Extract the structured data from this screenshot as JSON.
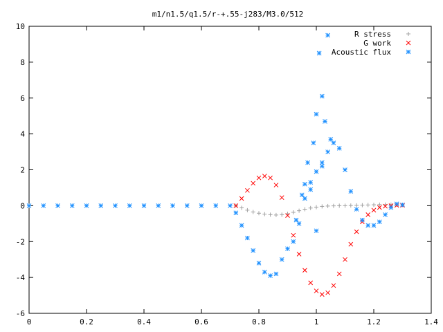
{
  "chart_data": {
    "type": "scatter",
    "title": "m1/n1.5/q1.5/r-+.55-j283/M3.0/512",
    "xlabel": "",
    "ylabel": "",
    "xlim": [
      0,
      1.4
    ],
    "ylim": [
      -6,
      10
    ],
    "x_ticks": [
      "0",
      "0.2",
      "0.4",
      "0.6",
      "0.8",
      "1",
      "1.2",
      "1.4"
    ],
    "y_ticks": [
      "-6",
      "-4",
      "-2",
      "0",
      "2",
      "4",
      "6",
      "8",
      "10"
    ],
    "legend_position": "top-right",
    "grid": false,
    "series": [
      {
        "name": "R stress",
        "marker": "plus",
        "color": "#a0a0a0",
        "x": [
          0.72,
          0.74,
          0.76,
          0.78,
          0.8,
          0.82,
          0.84,
          0.86,
          0.88,
          0.9,
          0.92,
          0.94,
          0.96,
          0.98,
          1.0,
          1.02,
          1.04,
          1.06,
          1.08,
          1.1,
          1.12,
          1.14,
          1.16,
          1.18,
          1.2,
          1.22,
          1.24,
          1.26,
          1.28,
          1.3
        ],
        "y": [
          0.0,
          -0.12,
          -0.25,
          -0.35,
          -0.42,
          -0.47,
          -0.5,
          -0.52,
          -0.5,
          -0.45,
          -0.37,
          -0.28,
          -0.2,
          -0.13,
          -0.08,
          -0.04,
          -0.02,
          -0.01,
          0.0,
          0.0,
          0.01,
          0.02,
          0.03,
          0.04,
          0.05,
          0.06,
          0.06,
          0.06,
          0.05,
          0.04
        ]
      },
      {
        "name": "G work",
        "marker": "cross",
        "color": "#ff0000",
        "x": [
          0.72,
          0.74,
          0.76,
          0.78,
          0.8,
          0.82,
          0.84,
          0.86,
          0.88,
          0.9,
          0.92,
          0.94,
          0.96,
          0.98,
          1.0,
          1.02,
          1.04,
          1.06,
          1.08,
          1.1,
          1.12,
          1.14,
          1.16,
          1.18,
          1.2,
          1.22,
          1.24,
          1.26,
          1.28,
          1.3
        ],
        "y": [
          0.0,
          0.4,
          0.85,
          1.25,
          1.55,
          1.65,
          1.55,
          1.15,
          0.45,
          -0.55,
          -1.65,
          -2.7,
          -3.6,
          -4.3,
          -4.75,
          -4.95,
          -4.85,
          -4.45,
          -3.8,
          -3.0,
          -2.15,
          -1.45,
          -0.9,
          -0.5,
          -0.25,
          -0.1,
          -0.03,
          0.0,
          0.02,
          0.02
        ]
      },
      {
        "name": "Acoustic flux",
        "marker": "star",
        "color": "#1e90ff",
        "x": [
          0.0,
          0.05,
          0.1,
          0.15,
          0.2,
          0.25,
          0.3,
          0.35,
          0.4,
          0.45,
          0.5,
          0.55,
          0.6,
          0.65,
          0.7,
          0.72,
          0.74,
          0.76,
          0.78,
          0.8,
          0.82,
          0.84,
          0.86,
          0.88,
          0.9,
          0.92,
          0.94,
          0.96,
          0.98,
          1.0,
          1.02,
          1.04,
          1.06,
          1.08,
          1.1,
          1.12,
          1.14,
          1.16,
          1.18,
          1.2,
          1.22,
          1.24,
          1.26,
          1.28,
          1.3,
          0.93,
          0.95,
          0.97,
          0.99,
          1.0,
          1.01,
          1.02,
          1.03,
          1.04,
          1.05,
          0.96,
          0.98,
          1.0,
          1.02
        ],
        "y": [
          0.0,
          0.0,
          0.0,
          0.0,
          0.0,
          0.0,
          0.0,
          0.0,
          0.0,
          0.0,
          0.0,
          0.0,
          0.0,
          0.0,
          0.0,
          -0.4,
          -1.1,
          -1.8,
          -2.5,
          -3.2,
          -3.7,
          -3.9,
          -3.8,
          -3.0,
          -2.4,
          -2.0,
          -1.0,
          0.4,
          1.3,
          1.9,
          2.4,
          3.0,
          3.5,
          3.2,
          2.0,
          0.8,
          -0.2,
          -0.8,
          -1.1,
          -1.1,
          -0.9,
          -0.5,
          -0.1,
          0.1,
          0.05,
          -0.8,
          0.6,
          2.4,
          3.5,
          5.1,
          8.5,
          6.1,
          4.7,
          9.5,
          3.7,
          1.2,
          0.9,
          -1.4,
          2.2
        ]
      }
    ]
  }
}
